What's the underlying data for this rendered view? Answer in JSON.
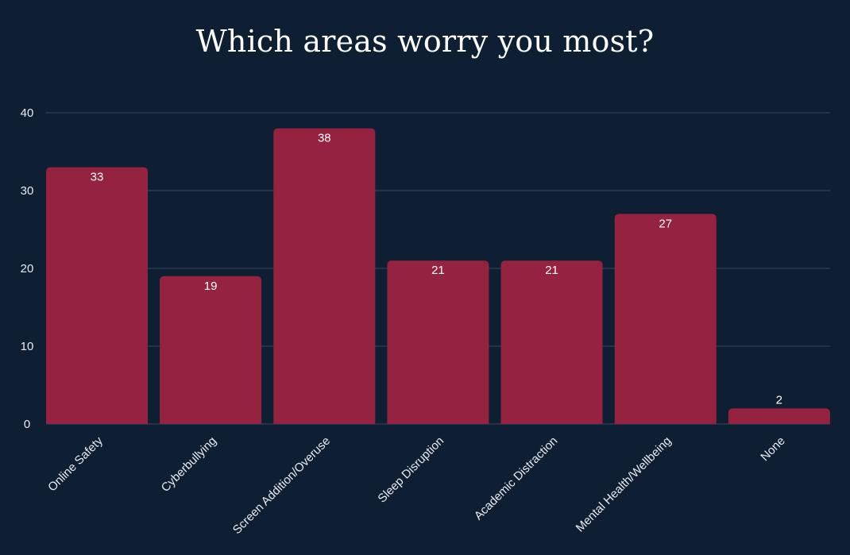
{
  "chart_data": {
    "type": "bar",
    "title": "Which areas worry you most?",
    "categories": [
      "Online Safety",
      "Cyberbullying",
      "Screen Addition/Overuse",
      "Sleep Disruption",
      "Academic Distraction",
      "Mental Health/Wellbeing",
      "None"
    ],
    "values": [
      33,
      19,
      38,
      21,
      21,
      27,
      2
    ],
    "xlabel": "",
    "ylabel": "",
    "ylim": [
      0,
      40
    ],
    "yticks": [
      0,
      10,
      20,
      30,
      40
    ],
    "grid": true,
    "legend": "none",
    "colors": {
      "background": "#0e1e33",
      "bar": "#952340",
      "grid": "#3a4a5e",
      "text": "#e8ecf2"
    }
  }
}
